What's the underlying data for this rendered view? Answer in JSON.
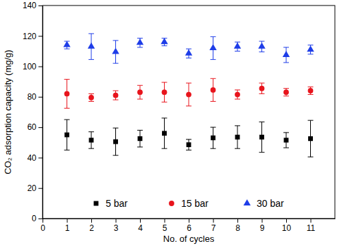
{
  "chart_data": {
    "type": "scatter",
    "x_label": "No. of cycles",
    "y_label": "CO₂ adsorption capacity (mg/g)",
    "x": [
      1,
      2,
      3,
      4,
      5,
      6,
      7,
      8,
      9,
      10,
      11
    ],
    "xlim": [
      0,
      12
    ],
    "xticks": [
      0,
      1,
      2,
      3,
      4,
      5,
      6,
      7,
      8,
      9,
      10,
      11
    ],
    "ylim": [
      0,
      140
    ],
    "yticks": [
      0,
      20,
      40,
      60,
      80,
      100,
      120,
      140
    ],
    "legend": "bottom",
    "grid": false,
    "series": [
      {
        "name": "5 bar",
        "color": "#000000",
        "marker": "square",
        "values": [
          55,
          51.5,
          50.5,
          52.5,
          56,
          48.5,
          53,
          53.5,
          53.5,
          51.5,
          52.5
        ],
        "errors": [
          10,
          5.5,
          9,
          5.5,
          10,
          3.5,
          7,
          7.5,
          10,
          5,
          12
        ]
      },
      {
        "name": "15 bar",
        "color": "#e8141c",
        "marker": "circle",
        "values": [
          82,
          79.5,
          81,
          83,
          83,
          81.5,
          84.5,
          81.5,
          85.5,
          83,
          84
        ],
        "errors": [
          9.5,
          2.5,
          3,
          4.5,
          6.5,
          7.5,
          7.5,
          3,
          3.5,
          2.5,
          2.5
        ]
      },
      {
        "name": "30 bar",
        "color": "#1e3de8",
        "marker": "triangle",
        "values": [
          114,
          113,
          109.5,
          115.5,
          116,
          108.5,
          112,
          113,
          113,
          107.5,
          111
        ],
        "errors": [
          2.5,
          8.5,
          7.5,
          3,
          2.5,
          3,
          7.5,
          3,
          3.5,
          5,
          3
        ]
      }
    ]
  }
}
